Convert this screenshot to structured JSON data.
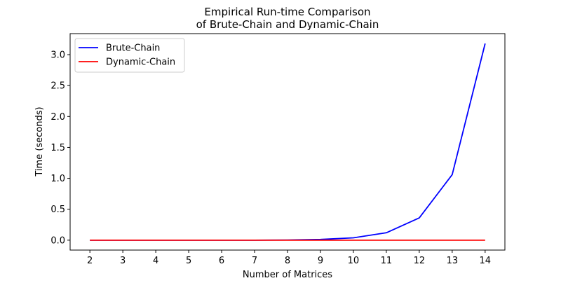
{
  "chart_data": {
    "type": "line",
    "title": "Empirical Run-time Comparison\nof Brute-Chain and Dynamic-Chain",
    "title_lines": [
      "Empirical Run-time Comparison",
      "of Brute-Chain and Dynamic-Chain"
    ],
    "xlabel": "Number of Matrices",
    "ylabel": "Time (seconds)",
    "x": [
      2,
      3,
      4,
      5,
      6,
      7,
      8,
      9,
      10,
      11,
      12,
      13,
      14
    ],
    "xticks": [
      "2",
      "3",
      "4",
      "5",
      "6",
      "7",
      "8",
      "9",
      "10",
      "11",
      "12",
      "13",
      "14"
    ],
    "yticks": [
      "0.0",
      "0.5",
      "1.0",
      "1.5",
      "2.0",
      "2.5",
      "3.0"
    ],
    "xlim": [
      1.4,
      14.6
    ],
    "ylim": [
      -0.16,
      3.34
    ],
    "grid": false,
    "legend_position": "upper-left",
    "series": [
      {
        "name": "Brute-Chain",
        "color": "#0000ff",
        "values": [
          0.0,
          0.0,
          0.0,
          0.0,
          0.0,
          0.0,
          0.003,
          0.012,
          0.038,
          0.12,
          0.36,
          1.06,
          3.18
        ]
      },
      {
        "name": "Dynamic-Chain",
        "color": "#ff0000",
        "values": [
          0.0,
          0.0,
          0.0,
          0.0,
          0.0,
          0.0,
          0.0,
          0.0,
          0.0,
          0.0,
          0.0,
          0.0,
          0.0
        ]
      }
    ]
  }
}
